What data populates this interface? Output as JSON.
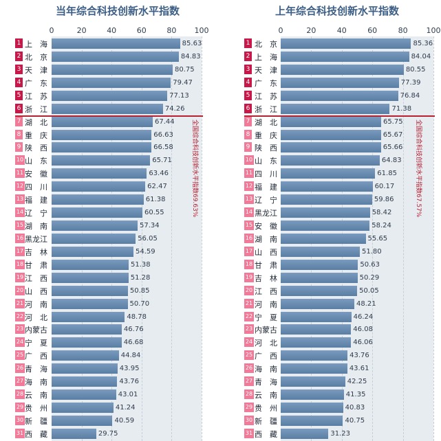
{
  "colors": {
    "title": "#3d5f86",
    "bar": "#6a8db3",
    "rank_top": "#c8184a",
    "rank_rest": "#f07a97",
    "divider": "#b52131"
  },
  "chart_data": [
    {
      "type": "bar",
      "orientation": "horizontal",
      "title": "当年综合科技创新水平指数",
      "xlim": [
        0,
        100
      ],
      "xticks": [
        "0",
        "20",
        "40",
        "60",
        "80",
        "100"
      ],
      "ranks": [
        "1",
        "2",
        "3",
        "4",
        "5",
        "6",
        "7",
        "8",
        "9",
        "10",
        "11",
        "12",
        "13",
        "14",
        "15",
        "16",
        "17",
        "18",
        "19",
        "20",
        "21",
        "22",
        "23",
        "24",
        "25",
        "26",
        "27",
        "28",
        "29",
        "30",
        "31"
      ],
      "categories": [
        "上　海",
        "北　京",
        "天　津",
        "广　东",
        "江　苏",
        "浙　江",
        "湖　北",
        "重　庆",
        "陕　西",
        "山　东",
        "安　徽",
        "四　川",
        "福　建",
        "辽　宁",
        "湖　南",
        "黑龙江",
        "吉　林",
        "甘　肃",
        "江　西",
        "山　西",
        "河　南",
        "河　北",
        "内蒙古",
        "宁　夏",
        "广　西",
        "青　海",
        "海　南",
        "云　南",
        "贵　州",
        "新　疆",
        "西　藏"
      ],
      "values": [
        85.63,
        84.83,
        80.75,
        79.47,
        77.13,
        74.26,
        67.44,
        66.63,
        66.58,
        65.71,
        63.46,
        62.47,
        61.38,
        60.55,
        57.34,
        56.05,
        54.59,
        51.38,
        51.28,
        50.85,
        50.7,
        48.78,
        46.76,
        46.68,
        44.84,
        43.95,
        43.76,
        43.01,
        41.24,
        40.59,
        29.75
      ],
      "labels": [
        "85.63",
        "84.83",
        "80.75",
        "79.47",
        "77.13",
        "74.26",
        "67.44",
        "66.63",
        "66.58",
        "65.71",
        "63.46",
        "62.47",
        "61.38",
        "60.55",
        "57.34",
        "56.05",
        "54.59",
        "51.38",
        "51.28",
        "50.85",
        "50.70",
        "48.78",
        "46.76",
        "46.68",
        "44.84",
        "43.95",
        "43.76",
        "43.01",
        "41.24",
        "40.59",
        "29.75"
      ],
      "above_average_count": 6,
      "average_label": "全国综合科技创新水平指数69.63%"
    },
    {
      "type": "bar",
      "orientation": "horizontal",
      "title": "上年综合科技创新水平指数",
      "xlim": [
        0,
        100
      ],
      "xticks": [
        "0",
        "20",
        "40",
        "60",
        "80",
        "100"
      ],
      "ranks": [
        "1",
        "2",
        "3",
        "4",
        "5",
        "6",
        "7",
        "8",
        "9",
        "10",
        "11",
        "12",
        "13",
        "14",
        "15",
        "16",
        "17",
        "18",
        "19",
        "20",
        "21",
        "22",
        "23",
        "24",
        "25",
        "26",
        "27",
        "28",
        "29",
        "30",
        "31"
      ],
      "categories": [
        "北　京",
        "上　海",
        "天　津",
        "广　东",
        "江　苏",
        "浙　江",
        "湖　北",
        "重　庆",
        "陕　西",
        "山　东",
        "四　川",
        "福　建",
        "辽　宁",
        "黑龙江",
        "安　徽",
        "湖　南",
        "山　西",
        "甘　肃",
        "吉　林",
        "江　西",
        "河　南",
        "宁　夏",
        "内蒙古",
        "河　北",
        "广　西",
        "海　南",
        "青　海",
        "云　南",
        "贵　州",
        "新　疆",
        "西　藏"
      ],
      "values": [
        85.36,
        84.04,
        80.55,
        77.39,
        76.84,
        71.38,
        65.75,
        65.67,
        65.66,
        64.83,
        61.85,
        60.17,
        59.86,
        58.42,
        58.24,
        55.65,
        51.8,
        50.63,
        50.29,
        50.05,
        48.21,
        46.24,
        46.08,
        46.06,
        43.76,
        43.61,
        42.25,
        41.35,
        40.83,
        40.75,
        31.23
      ],
      "labels": [
        "85.36",
        "84.04",
        "80.55",
        "77.39",
        "76.84",
        "71.38",
        "65.75",
        "65.67",
        "65.66",
        "64.83",
        "61.85",
        "60.17",
        "59.86",
        "58.42",
        "58.24",
        "55.65",
        "51.80",
        "50.63",
        "50.29",
        "50.05",
        "48.21",
        "46.24",
        "46.08",
        "46.06",
        "43.76",
        "43.61",
        "42.25",
        "41.35",
        "40.83",
        "40.75",
        "31.23"
      ],
      "above_average_count": 6,
      "average_label": "全国综合科技创新水平指数67.57%"
    }
  ]
}
